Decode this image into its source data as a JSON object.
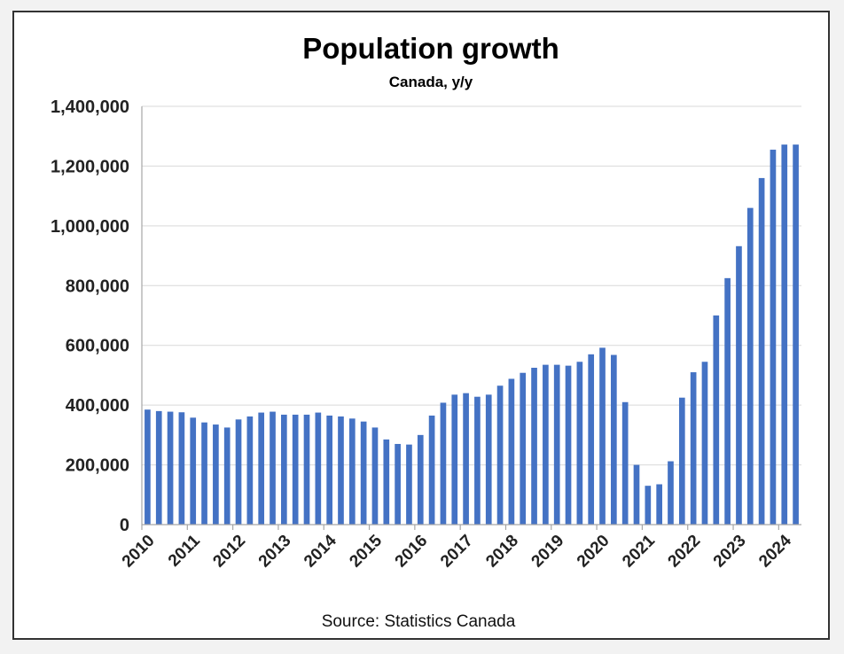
{
  "chart_data": {
    "type": "bar",
    "title": "Population growth",
    "subtitle": "Canada, y/y",
    "source": "Source: Statistics Canada",
    "xlabel": "",
    "ylabel": "",
    "ylim": [
      0,
      1400000
    ],
    "yticks": [
      0,
      200000,
      400000,
      600000,
      800000,
      1000000,
      1200000,
      1400000
    ],
    "ytick_labels": [
      "0",
      "200,000",
      "400,000",
      "600,000",
      "800,000",
      "1,000,000",
      "1,200,000",
      "1,400,000"
    ],
    "xtick_labels": [
      "2010",
      "2011",
      "2012",
      "2013",
      "2014",
      "2015",
      "2016",
      "2017",
      "2018",
      "2019",
      "2020",
      "2021",
      "2022",
      "2023",
      "2024"
    ],
    "grid": true,
    "legend": false,
    "bar_color": "#4472C4",
    "values": [
      385000,
      380000,
      378000,
      376000,
      358000,
      342000,
      335000,
      325000,
      352000,
      362000,
      375000,
      378000,
      368000,
      368000,
      368000,
      375000,
      365000,
      362000,
      355000,
      345000,
      325000,
      285000,
      270000,
      268000,
      300000,
      365000,
      408000,
      435000,
      440000,
      428000,
      435000,
      465000,
      488000,
      508000,
      525000,
      535000,
      535000,
      532000,
      545000,
      570000,
      592000,
      568000,
      410000,
      200000,
      130000,
      135000,
      212000,
      425000,
      510000,
      545000,
      700000,
      825000,
      932000,
      1060000,
      1160000,
      1255000,
      1272000,
      1272000
    ]
  }
}
